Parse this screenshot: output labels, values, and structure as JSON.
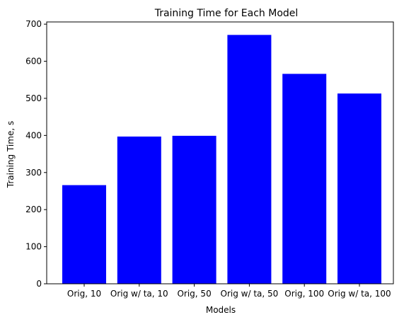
{
  "chart_data": {
    "type": "bar",
    "title": "Training Time for Each Model",
    "xlabel": "Models",
    "ylabel": "Training Time, s",
    "categories": [
      "Orig, 10",
      "Orig w/ ta, 10",
      "Orig, 50",
      "Orig w/ ta, 50",
      "Orig, 100",
      "Orig w/ ta, 100"
    ],
    "values": [
      266,
      397,
      399,
      671,
      566,
      513
    ],
    "ylim": [
      0,
      706
    ],
    "yticks": [
      0,
      100,
      200,
      300,
      400,
      500,
      600,
      700
    ],
    "bar_color": "#0000ff",
    "grid": false,
    "legend": "none"
  }
}
